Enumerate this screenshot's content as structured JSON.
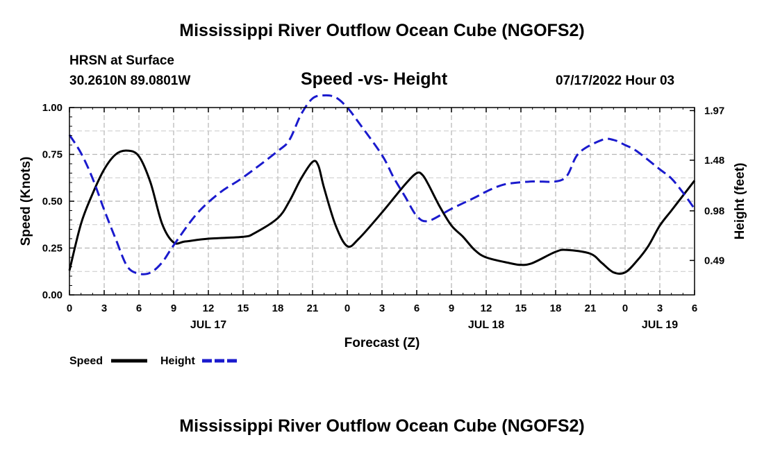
{
  "header": {
    "title": "Mississippi River Outflow Ocean Cube (NGOFS2)",
    "station": "HRSN at Surface",
    "coords": "30.2610N  89.0801W",
    "subtitle": "Speed -vs- Height",
    "datetime": "07/17/2022 Hour 03"
  },
  "footer": {
    "title": "Mississippi River Outflow Ocean Cube (NGOFS2)"
  },
  "chart_data": {
    "type": "line",
    "title": "Speed -vs- Height",
    "xlabel": "Forecast (Z)",
    "ylabel": "Speed (Knots)",
    "y2label": "Height (feet)",
    "xlim": [
      0,
      54
    ],
    "ylim": [
      0,
      1
    ],
    "y2lim": [
      0.15,
      2.0
    ],
    "x_ticks": [
      0,
      3,
      6,
      9,
      12,
      15,
      18,
      21,
      24,
      27,
      30,
      33,
      36,
      39,
      42,
      45,
      48,
      51,
      54
    ],
    "x_tick_labels": [
      "0",
      "3",
      "6",
      "9",
      "12",
      "15",
      "18",
      "21",
      "0",
      "3",
      "6",
      "9",
      "12",
      "15",
      "18",
      "21",
      "0",
      "3",
      "6"
    ],
    "day_labels": [
      {
        "label": "JUL 17",
        "x": 12
      },
      {
        "label": "JUL 18",
        "x": 36
      },
      {
        "label": "JUL 19",
        "x": 51
      }
    ],
    "y_ticks": [
      0,
      0.25,
      0.5,
      0.75,
      1.0
    ],
    "y_tick_labels": [
      "0.00",
      "0.25",
      "0.50",
      "0.75",
      "1.00"
    ],
    "y2_ticks": [
      0.49,
      0.98,
      1.48,
      1.97
    ],
    "y2_tick_labels": [
      "0.49",
      "0.98",
      "1.48",
      "1.97"
    ],
    "grid": true,
    "legend_position": "bottom-left",
    "series": [
      {
        "name": "Speed",
        "axis": "left",
        "color": "#000000",
        "dash": "solid",
        "points": [
          [
            0,
            0.13
          ],
          [
            1,
            0.38
          ],
          [
            2,
            0.54
          ],
          [
            3,
            0.67
          ],
          [
            4,
            0.75
          ],
          [
            5,
            0.77
          ],
          [
            6,
            0.74
          ],
          [
            7,
            0.6
          ],
          [
            8,
            0.38
          ],
          [
            9,
            0.28
          ],
          [
            10,
            0.285
          ],
          [
            12,
            0.3
          ],
          [
            15,
            0.31
          ],
          [
            16,
            0.33
          ],
          [
            18,
            0.41
          ],
          [
            19,
            0.5
          ],
          [
            20,
            0.62
          ],
          [
            21,
            0.71
          ],
          [
            21.5,
            0.69
          ],
          [
            22,
            0.57
          ],
          [
            23,
            0.37
          ],
          [
            24,
            0.26
          ],
          [
            25,
            0.3
          ],
          [
            27,
            0.44
          ],
          [
            29,
            0.59
          ],
          [
            30,
            0.65
          ],
          [
            30.5,
            0.64
          ],
          [
            31,
            0.59
          ],
          [
            32,
            0.47
          ],
          [
            33,
            0.37
          ],
          [
            34,
            0.31
          ],
          [
            35,
            0.24
          ],
          [
            36,
            0.2
          ],
          [
            38,
            0.17
          ],
          [
            39,
            0.16
          ],
          [
            40,
            0.17
          ],
          [
            42,
            0.23
          ],
          [
            43,
            0.24
          ],
          [
            45,
            0.22
          ],
          [
            46,
            0.17
          ],
          [
            47,
            0.12
          ],
          [
            48,
            0.12
          ],
          [
            49,
            0.18
          ],
          [
            50,
            0.26
          ],
          [
            51,
            0.37
          ],
          [
            52,
            0.45
          ],
          [
            53,
            0.53
          ],
          [
            54,
            0.61
          ]
        ]
      },
      {
        "name": "Height",
        "axis": "right",
        "color": "#1a1acd",
        "dash": "dashed",
        "points": [
          [
            0,
            1.73
          ],
          [
            1,
            1.55
          ],
          [
            2,
            1.3
          ],
          [
            3,
            0.99
          ],
          [
            4,
            0.7
          ],
          [
            5,
            0.43
          ],
          [
            6,
            0.36
          ],
          [
            7,
            0.37
          ],
          [
            8,
            0.47
          ],
          [
            9,
            0.64
          ],
          [
            11,
            0.95
          ],
          [
            13,
            1.16
          ],
          [
            15,
            1.31
          ],
          [
            18,
            1.57
          ],
          [
            19,
            1.68
          ],
          [
            20,
            1.93
          ],
          [
            21,
            2.09
          ],
          [
            22,
            2.12
          ],
          [
            23,
            2.1
          ],
          [
            24,
            2.0
          ],
          [
            25,
            1.85
          ],
          [
            27,
            1.53
          ],
          [
            28,
            1.31
          ],
          [
            29,
            1.12
          ],
          [
            30,
            0.93
          ],
          [
            31,
            0.88
          ],
          [
            33,
            1.0
          ],
          [
            35,
            1.11
          ],
          [
            36,
            1.17
          ],
          [
            37,
            1.22
          ],
          [
            38,
            1.25
          ],
          [
            40,
            1.27
          ],
          [
            42,
            1.27
          ],
          [
            43,
            1.33
          ],
          [
            44,
            1.55
          ],
          [
            46,
            1.68
          ],
          [
            47,
            1.68
          ],
          [
            48,
            1.63
          ],
          [
            49,
            1.57
          ],
          [
            51,
            1.39
          ],
          [
            52,
            1.3
          ],
          [
            53,
            1.16
          ],
          [
            54,
            1.0
          ]
        ]
      }
    ]
  }
}
